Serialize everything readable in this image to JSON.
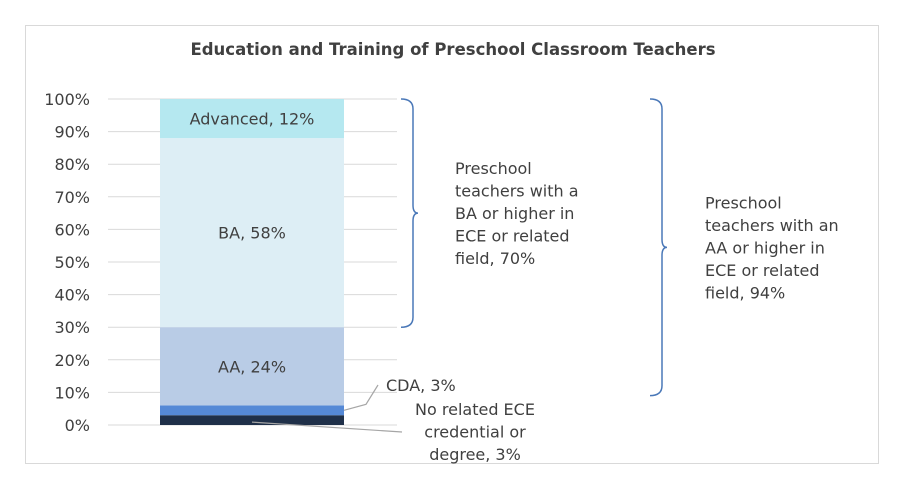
{
  "chart_data": {
    "type": "bar",
    "stacked": true,
    "title": "Education and Training of Preschool Classroom Teachers",
    "xlabel": "",
    "ylabel": "",
    "ylim": [
      0,
      100
    ],
    "yticks": [
      "0%",
      "10%",
      "20%",
      "30%",
      "40%",
      "50%",
      "60%",
      "70%",
      "80%",
      "90%",
      "100%"
    ],
    "grid": true,
    "series": [
      {
        "name": "No related ECE credential or degree",
        "value": 3,
        "label_lines": [
          "No related ECE",
          "credential or",
          "degree, 3%"
        ],
        "color": "#1f3049"
      },
      {
        "name": "CDA",
        "value": 3,
        "label_lines": [
          "CDA, 3%"
        ],
        "color": "#5589d6"
      },
      {
        "name": "AA",
        "value": 24,
        "label_lines": [
          "AA, 24%"
        ],
        "color": "#b9cce6"
      },
      {
        "name": "BA",
        "value": 58,
        "label_lines": [
          "BA, 58%"
        ],
        "color": "#ddeef5"
      },
      {
        "name": "Advanced",
        "value": 12,
        "label_lines": [
          "Advanced, 12%"
        ],
        "color": "#b5e8f0"
      }
    ],
    "annotations": [
      {
        "from": 30,
        "to": 100,
        "lines": [
          "Preschool",
          "teachers with a",
          "BA or higher in",
          "ECE or related",
          "field, 70%"
        ]
      },
      {
        "from": 9,
        "to": 100,
        "lines": [
          "Preschool",
          "teachers with an",
          "AA or higher in",
          "ECE or related",
          "field, 94%"
        ]
      }
    ]
  }
}
